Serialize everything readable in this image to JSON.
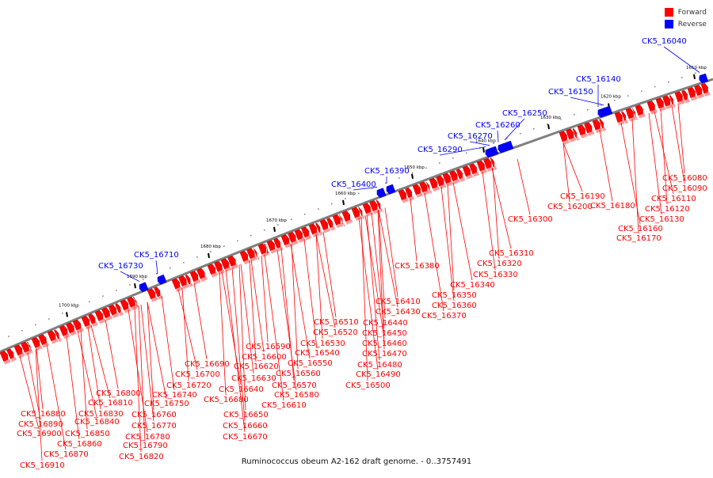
{
  "legend": {
    "forward_label": "Forward",
    "reverse_label": "Reverse",
    "forward_color": "#ff0000",
    "reverse_color": "#0000ff"
  },
  "caption": "Ruminococcus obeum A2-162 draft genome. - 0..3757491",
  "ticks": [
    "1610 kbp",
    "1620 kbp",
    "1630 kbp",
    "1640 kbp",
    "1650 kbp",
    "1660 kbp",
    "1670 kbp",
    "1680 kbp",
    "1690 kbp",
    "1700 kbp"
  ],
  "reverse_genes": [
    "CK5_16040",
    "CK5_16140",
    "CK5_16150",
    "CK5_16250",
    "CK5_16260",
    "CK5_16270",
    "CK5_16290",
    "CK5_16390",
    "CK5_16400",
    "CK5_16710",
    "CK5_16730"
  ],
  "forward_genes": [
    "CK5_16080",
    "CK5_16090",
    "CK5_16110",
    "CK5_16120",
    "CK5_16130",
    "CK5_16160",
    "CK5_16170",
    "CK5_16180",
    "CK5_16190",
    "CK5_16200",
    "CK5_16300",
    "CK5_16310",
    "CK5_16320",
    "CK5_16330",
    "CK5_16340",
    "CK5_16350",
    "CK5_16360",
    "CK5_16370",
    "CK5_16380",
    "CK5_16410",
    "CK5_16430",
    "CK5_16440",
    "CK5_16450",
    "CK5_16460",
    "CK5_16470",
    "CK5_16480",
    "CK5_16490",
    "CK5_16500",
    "CK5_16510",
    "CK5_16520",
    "CK5_16530",
    "CK5_16540",
    "CK5_16550",
    "CK5_16560",
    "CK5_16570",
    "CK5_16580",
    "CK5_16590",
    "CK5_16600",
    "CK5_16610",
    "CK5_16620",
    "CK5_16630",
    "CK5_16640",
    "CK5_16650",
    "CK5_16660",
    "CK5_16670",
    "CK5_16680",
    "CK5_16690",
    "CK5_16700",
    "CK5_16720",
    "CK5_16740",
    "CK5_16750",
    "CK5_16760",
    "CK5_16770",
    "CK5_16780",
    "CK5_16790",
    "CK5_16800",
    "CK5_16810",
    "CK5_16820",
    "CK5_16830",
    "CK5_16840",
    "CK5_16850",
    "CK5_16860",
    "CK5_16870",
    "CK5_16880",
    "CK5_16890",
    "CK5_16900",
    "CK5_16910"
  ]
}
